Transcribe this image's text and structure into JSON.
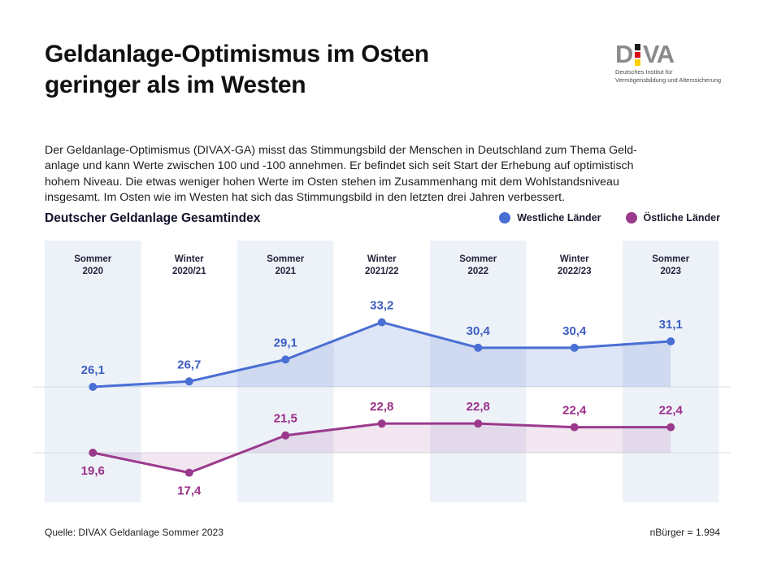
{
  "header": {
    "title_lines": [
      "Geldanlage-Optimismus im Osten",
      "geringer als im Westen"
    ],
    "logo": {
      "letter_d": "D",
      "letters_va": "VA",
      "flag_colors": [
        "#1a1a1a",
        "#dd0b16",
        "#ffce00"
      ],
      "tagline_line1": "Deutsches Institut für",
      "tagline_line2": "Vermögensbildung und Alterssicherung"
    }
  },
  "intro": {
    "lines": [
      "Der Geldanlage-Optimismus (DIVAX-GA) misst das Stimmungsbild der Menschen in Deutschland zum Thema Geld-",
      "anlage und kann Werte zwischen 100 und -100 annehmen. Er befindet sich seit Start der Erhebung auf optimistisch",
      "hohem Niveau. Die etwas weniger hohen Werte im Osten stehen im Zusammenhang mit dem Wohlstandsniveau",
      "insgesamt. Im Osten wie im Westen hat sich das Stimmungsbild in den letzten drei Jahren verbessert."
    ]
  },
  "chart_data": {
    "type": "area",
    "title": "Deutscher Geldanlage Gesamtindex",
    "categories": [
      [
        "Sommer",
        "2020"
      ],
      [
        "Winter",
        "2020/21"
      ],
      [
        "Sommer",
        "2021"
      ],
      [
        "Winter",
        "2021/22"
      ],
      [
        "Sommer",
        "2022"
      ],
      [
        "Winter",
        "2022/23"
      ],
      [
        "Sommer",
        "2023"
      ]
    ],
    "series": [
      {
        "name": "Westliche Länder",
        "color": "#4a6fd4",
        "label_color": "#3d5ec2",
        "fill_opacity": 0.18,
        "values": [
          26.1,
          26.7,
          29.1,
          33.2,
          30.4,
          30.4,
          31.1
        ],
        "label_below": [
          false,
          false,
          false,
          false,
          false,
          false,
          false
        ]
      },
      {
        "name": "Östliche Länder",
        "color": "#9b3a8d",
        "label_color": "#9a2d86",
        "fill_opacity": 0.13,
        "values": [
          19.6,
          17.4,
          21.5,
          22.8,
          22.8,
          22.4,
          22.4
        ],
        "label_below": [
          true,
          true,
          false,
          false,
          false,
          false,
          false
        ]
      }
    ],
    "value_axis_range_note": "index can range from -100 to 100; no visible axis labels",
    "baselines": "each series has an unlabeled horizontal reference line at its first value",
    "grid": true,
    "legend_position": "top-right",
    "band_fill": "#edf2f8",
    "decimal_format": "comma"
  },
  "footer": {
    "source": "Quelle: DIVAX Geldanlage Sommer 2023",
    "sample": "nBürger = 1.994"
  }
}
